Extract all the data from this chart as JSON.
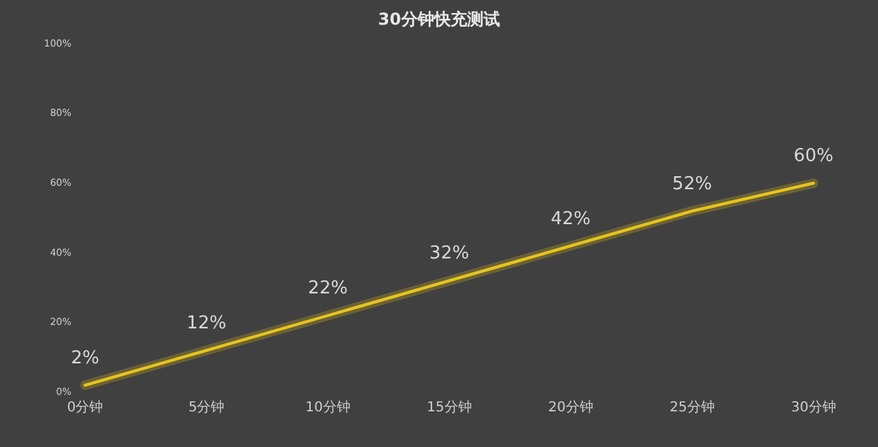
{
  "chart_data": {
    "type": "line",
    "title": "30分钟快充测试",
    "categories": [
      "0分钟",
      "5分钟",
      "10分钟",
      "15分钟",
      "20分钟",
      "25分钟",
      "30分钟"
    ],
    "series": [
      {
        "color": "#e6c41c",
        "values": [
          2,
          12,
          22,
          32,
          42,
          52,
          60
        ],
        "value_labels": [
          "2%",
          "12%",
          "22%",
          "32%",
          "42%",
          "52%",
          "60%"
        ]
      }
    ],
    "ylim": [
      0,
      100
    ],
    "yticks": [
      {
        "value": 0,
        "label": "0%"
      },
      {
        "value": 20,
        "label": "20%"
      },
      {
        "value": 40,
        "label": "40%"
      },
      {
        "value": 60,
        "label": "60%"
      },
      {
        "value": 80,
        "label": "80%"
      },
      {
        "value": 100,
        "label": "100%"
      }
    ],
    "marker": "none",
    "line_style": "solid"
  }
}
